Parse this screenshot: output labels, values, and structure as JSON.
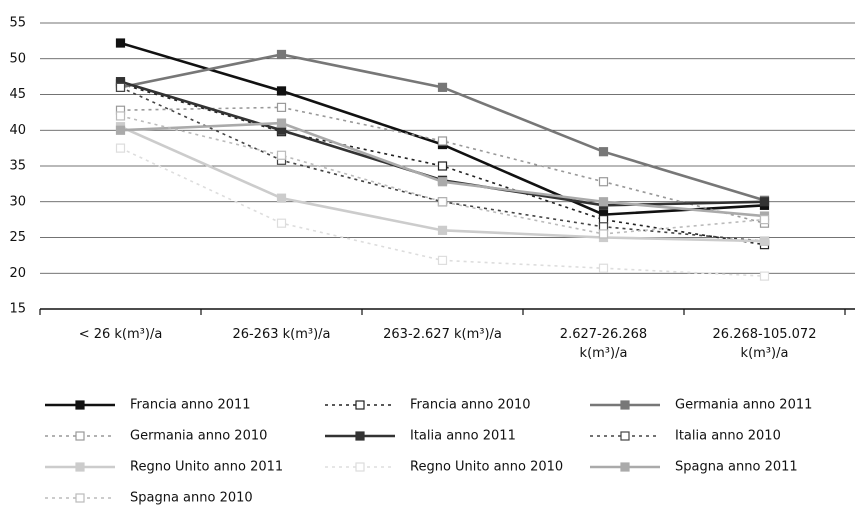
{
  "chart_data": {
    "type": "line",
    "categories": [
      "< 26 k(m³)/a",
      "26-263 k(m³)/a",
      "263-2.627 k(m³)/a",
      "2.627-26.268\nk(m³)/a",
      "26.268-105.072\nk(m³)/a"
    ],
    "ylim": [
      15,
      55
    ],
    "yticks": [
      15,
      20,
      25,
      30,
      35,
      40,
      45,
      50,
      55
    ],
    "grid": true,
    "series": [
      {
        "name": "Francia anno 2011",
        "color": "#111111",
        "style": "solid",
        "values": [
          52.2,
          45.5,
          38,
          28.2,
          29.5
        ]
      },
      {
        "name": "Francia anno 2010",
        "color": "#222222",
        "style": "dotted",
        "values": [
          46.5,
          39.8,
          35,
          27.5,
          24
        ]
      },
      {
        "name": "Germania anno 2011",
        "color": "#777777",
        "style": "solid",
        "values": [
          46,
          50.6,
          46,
          37,
          30.2
        ]
      },
      {
        "name": "Germania anno 2010",
        "color": "#999999",
        "style": "dotted",
        "values": [
          42.8,
          43.2,
          38.5,
          32.8,
          27
        ]
      },
      {
        "name": "Italia anno 2011",
        "color": "#333333",
        "style": "solid",
        "values": [
          46.8,
          40,
          33,
          29.5,
          30
        ]
      },
      {
        "name": "Italia anno 2010",
        "color": "#444444",
        "style": "dotted",
        "values": [
          46,
          35.8,
          30,
          26.5,
          24.5
        ]
      },
      {
        "name": "Regno Unito anno 2011",
        "color": "#cccccc",
        "style": "solid",
        "values": [
          40.5,
          30.5,
          26,
          25,
          24.5
        ]
      },
      {
        "name": "Regno Unito anno 2010",
        "color": "#dddddd",
        "style": "dotted",
        "values": [
          37.5,
          27,
          21.8,
          20.7,
          19.6
        ]
      },
      {
        "name": "Spagna anno 2011",
        "color": "#aaaaaa",
        "style": "solid",
        "values": [
          40,
          41,
          32.8,
          30,
          28
        ]
      },
      {
        "name": "Spagna anno 2010",
        "color": "#bbbbbb",
        "style": "dotted",
        "values": [
          42,
          36.5,
          30,
          25.5,
          27.5
        ]
      }
    ]
  }
}
